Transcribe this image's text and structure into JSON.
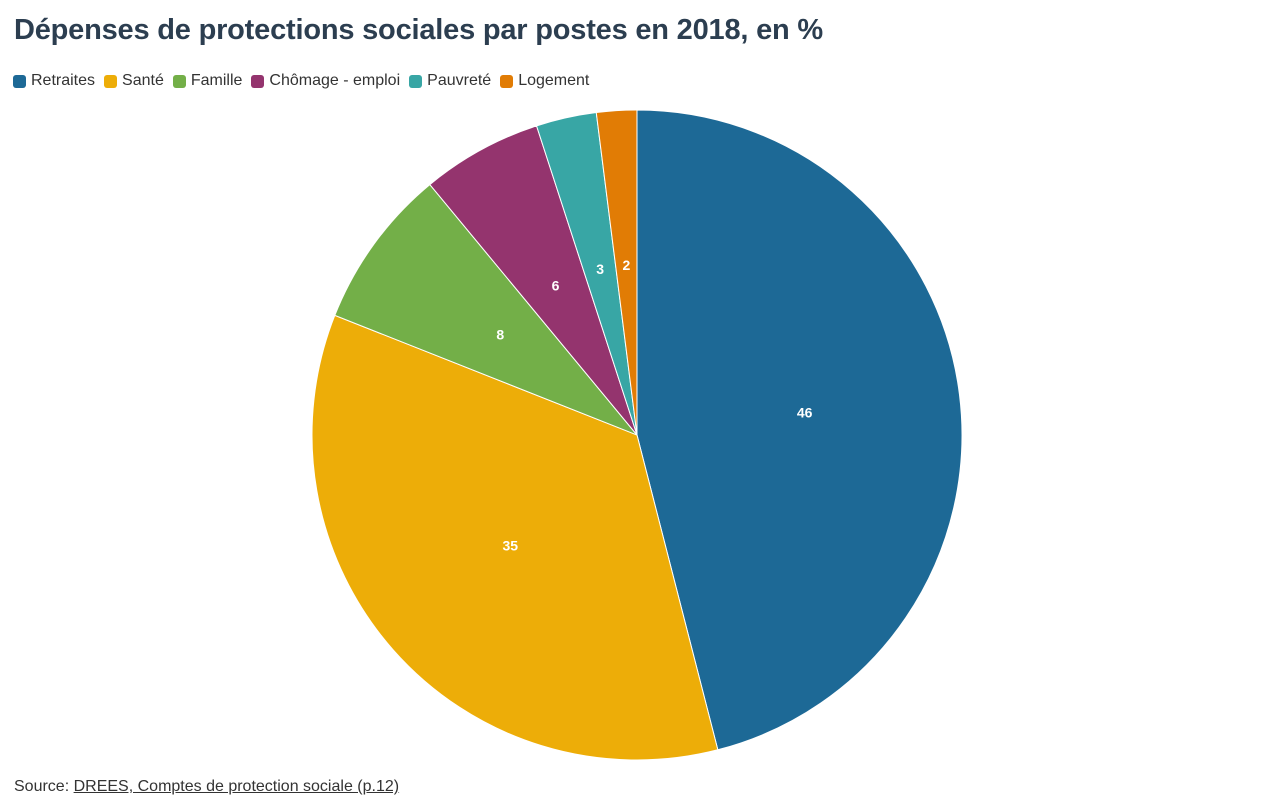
{
  "chart_data": {
    "type": "pie",
    "title": "Dépenses de protections sociales par postes en 2018, en %",
    "categories": [
      "Retraites",
      "Santé",
      "Famille",
      "Chômage - emploi",
      "Pauvreté",
      "Logement"
    ],
    "values": [
      46,
      35,
      8,
      6,
      3,
      2
    ],
    "colors": [
      "#1d6996",
      "#edad08",
      "#73af48",
      "#94346e",
      "#38a6a5",
      "#e17c05"
    ],
    "legend_position": "top-left",
    "start_angle": "12 o'clock",
    "direction": "clockwise"
  },
  "source": {
    "label": "Source: ",
    "link_text": "DREES, Comptes de protection sociale (p.12)"
  }
}
